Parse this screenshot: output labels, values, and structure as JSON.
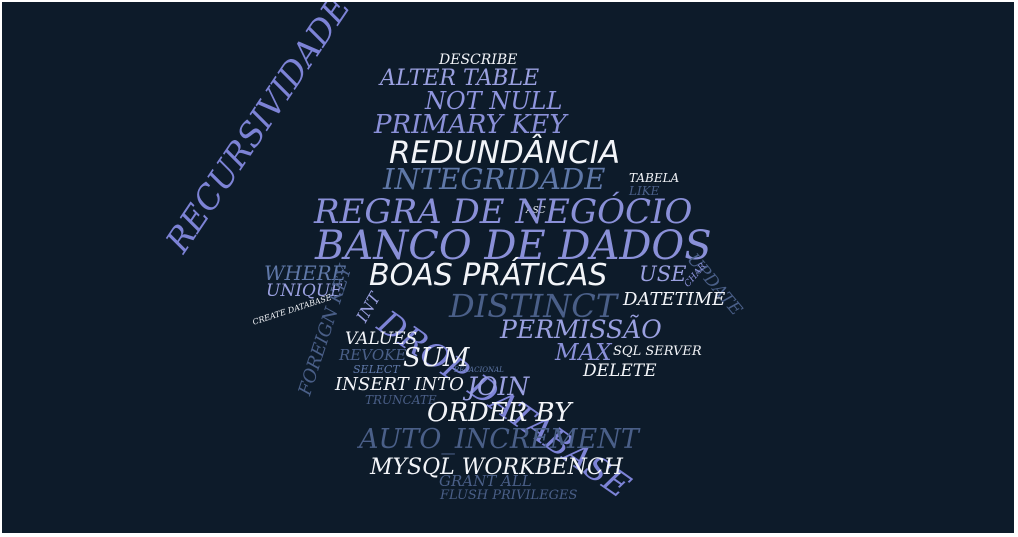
{
  "palette": {
    "background": "#0d1b2a",
    "white": "#f2f4f8",
    "lavender": "#9aa0e0",
    "periwinkle": "#7d83d6",
    "steel": "#5f78a8",
    "slate": "#4a5f88"
  },
  "words": [
    {
      "text": "DESCRIBE",
      "color": "#f2f4f8"
    },
    {
      "text": "ALTER TABLE",
      "color": "#9aa0e0"
    },
    {
      "text": "NOT NULL",
      "color": "#8f95de"
    },
    {
      "text": "PRIMARY KEY",
      "color": "#8a90d8"
    },
    {
      "text": "REDUNDÂNCIA",
      "color": "#f2f4f8"
    },
    {
      "text": "INTEGRIDADE",
      "color": "#5f78a8"
    },
    {
      "text": "TABELA",
      "color": "#f2f4f8"
    },
    {
      "text": "LIKE",
      "color": "#4a5f88"
    },
    {
      "text": "ASC",
      "color": "#f2f4f8"
    },
    {
      "text": "REGRA DE NEGÓCIO",
      "color": "#8a90d8"
    },
    {
      "text": "BANCO DE DADOS",
      "color": "#8a90d8"
    },
    {
      "text": "RECURSIVIDADE",
      "color": "#7d83d6"
    },
    {
      "text": "UPDATE",
      "color": "#4a5f88"
    },
    {
      "text": "WHERE",
      "color": "#5f78a8"
    },
    {
      "text": "BOAS PRÁTICAS",
      "color": "#f2f4f8"
    },
    {
      "text": "USE",
      "color": "#9aa0e0"
    },
    {
      "text": "CHAR",
      "color": "#8a90d8"
    },
    {
      "text": "UNIQUE",
      "color": "#9aa0e0"
    },
    {
      "text": "FOREIGN KEY",
      "color": "#4a5f88"
    },
    {
      "text": "DISTINCT",
      "color": "#4a5f88"
    },
    {
      "text": "DATETIME",
      "color": "#f2f4f8"
    },
    {
      "text": "CREATE DATABASE",
      "color": "#f2f4f8"
    },
    {
      "text": "INT",
      "color": "#9aa0e0"
    },
    {
      "text": "DROP DATABASE",
      "color": "#7d83d6"
    },
    {
      "text": "PERMISSÃO",
      "color": "#9aa0e0"
    },
    {
      "text": "VALUES",
      "color": "#f2f4f8"
    },
    {
      "text": "MAX",
      "color": "#8a90d8"
    },
    {
      "text": "SQL SERVER",
      "color": "#f2f4f8"
    },
    {
      "text": "REVOKE",
      "color": "#4a5f88"
    },
    {
      "text": "SUM",
      "color": "#f2f4f8"
    },
    {
      "text": "SELECT",
      "color": "#5f78a8"
    },
    {
      "text": "RELACIONAL",
      "color": "#5f78a8"
    },
    {
      "text": "DELETE",
      "color": "#f2f4f8"
    },
    {
      "text": "INSERT INTO",
      "color": "#f2f4f8"
    },
    {
      "text": "JOIN",
      "color": "#9aa0e0"
    },
    {
      "text": "TRUNCATE",
      "color": "#4a5f88"
    },
    {
      "text": "ORDER BY",
      "color": "#f2f4f8"
    },
    {
      "text": "AUTO_INCREMENT",
      "color": "#4a5f88"
    },
    {
      "text": "MYSQL WORKBENCH",
      "color": "#f2f4f8"
    },
    {
      "text": "GRANT ALL",
      "color": "#4a5f88"
    },
    {
      "text": "FLUSH PRIVILEGES",
      "color": "#4a5f88"
    }
  ]
}
